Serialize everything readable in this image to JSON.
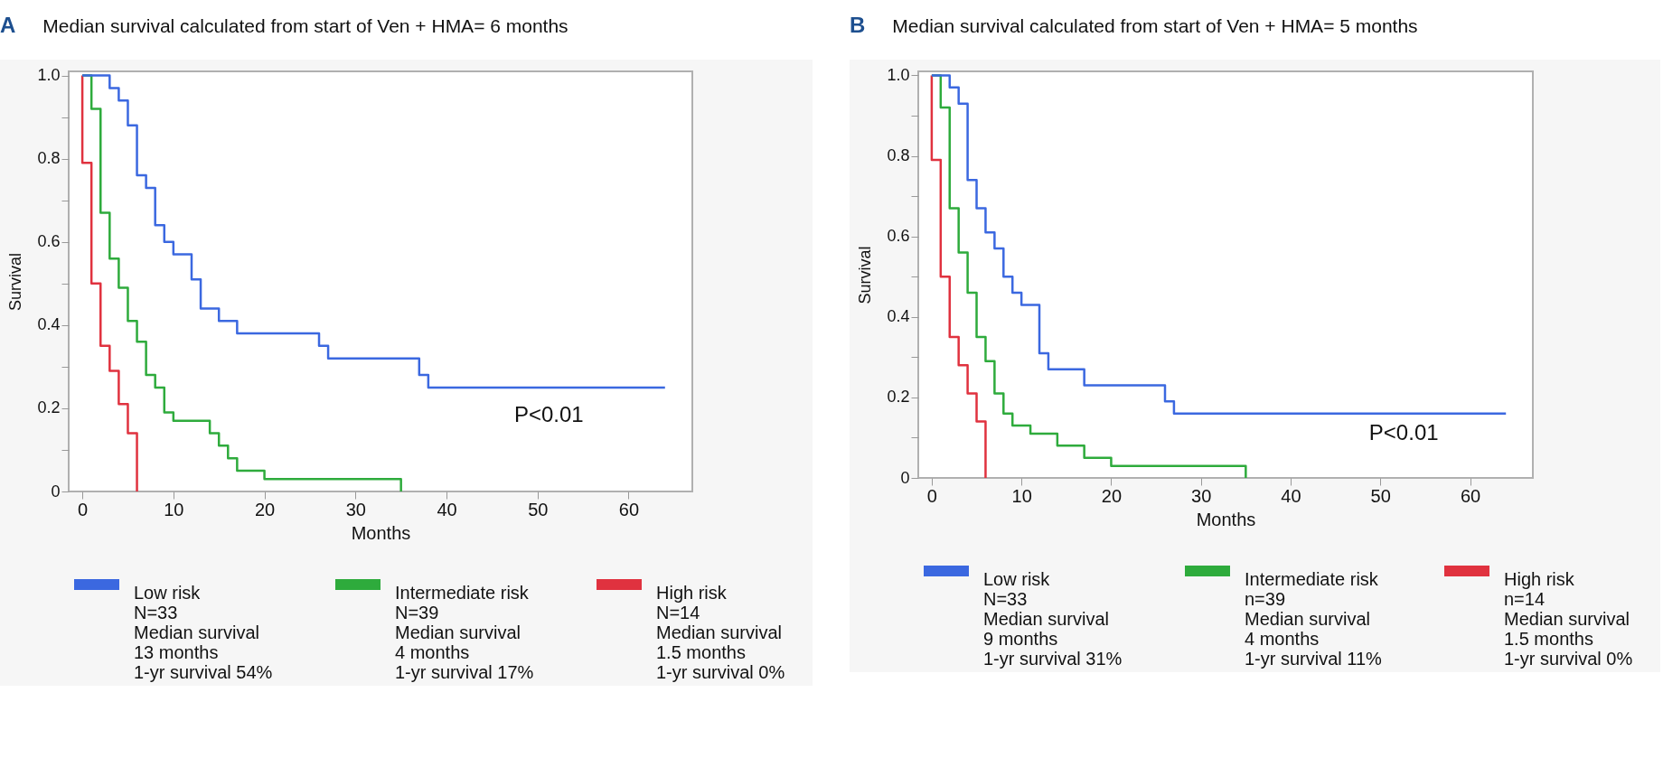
{
  "chart_data": [
    {
      "type": "step",
      "title": "Median survival calculated from start of Ven + HMA= 6 months",
      "xlabel": "Months",
      "ylabel": "Survival",
      "xlim": [
        -1.5,
        67
      ],
      "ylim": [
        0,
        1.01
      ],
      "xticks": [
        0,
        10,
        20,
        30,
        40,
        50,
        60
      ],
      "yticks": [
        0,
        {
          "value": 0.1,
          "label": null
        },
        0.2,
        {
          "value": 0.3,
          "label": null
        },
        0.4,
        {
          "value": 0.5,
          "label": null
        },
        0.6,
        {
          "value": 0.7,
          "label": null
        },
        0.8,
        {
          "value": 0.9,
          "label": null
        },
        {
          "value": 1,
          "label": "1.0"
        }
      ],
      "legend": "bottom",
      "marker": "none",
      "line_style": "solid",
      "series": [
        {
          "name": "Low risk",
          "color": "#3b68e0",
          "x": [
            0,
            3,
            4,
            5,
            6,
            7,
            8,
            9,
            10,
            12,
            13,
            15,
            17,
            26,
            27,
            37,
            38,
            64
          ],
          "values": [
            1,
            0.97,
            0.94,
            0.88,
            0.76,
            0.73,
            0.64,
            0.6,
            0.57,
            0.51,
            0.44,
            0.41,
            0.38,
            0.35,
            0.32,
            0.28,
            0.25,
            0.25
          ]
        },
        {
          "name": "Intermediate risk",
          "color": "#2eab3c",
          "x": [
            0,
            1,
            2,
            3,
            4,
            5,
            6,
            7,
            8,
            9,
            10,
            14,
            15,
            16,
            17,
            20,
            35
          ],
          "values": [
            1,
            0.92,
            0.67,
            0.56,
            0.49,
            0.41,
            0.36,
            0.28,
            0.25,
            0.19,
            0.17,
            0.14,
            0.11,
            0.08,
            0.05,
            0.03,
            0
          ]
        },
        {
          "name": "High risk",
          "color": "#e0323f",
          "x": [
            0,
            0,
            1,
            2,
            3,
            4,
            5,
            6
          ],
          "values": [
            1,
            0.79,
            0.5,
            0.35,
            0.29,
            0.21,
            0.14,
            0
          ]
        }
      ],
      "annotations": [
        "A",
        "P<0.01",
        "N=33\nMedian survival\n13 months\n1-yr survival 54%",
        "N=39\nMedian survival\n4 months\n1-yr survival 17%",
        "N=14\nMedian survival\n1.5 months\n1-yr survival 0%"
      ]
    },
    {
      "type": "step",
      "title": "Median survival calculated from start of Ven + HMA=  5 months",
      "xlabel": "Months",
      "ylabel": "Survival",
      "xlim": [
        -1.5,
        67
      ],
      "ylim": [
        0,
        1.01
      ],
      "xticks": [
        0,
        10,
        20,
        30,
        40,
        50,
        60
      ],
      "yticks": [
        0,
        {
          "value": 0.1,
          "label": null
        },
        0.2,
        {
          "value": 0.3,
          "label": null
        },
        0.4,
        {
          "value": 0.5,
          "label": null
        },
        0.6,
        {
          "value": 0.7,
          "label": null
        },
        0.8,
        {
          "value": 0.9,
          "label": null
        },
        {
          "value": 1,
          "label": "1.0"
        }
      ],
      "legend": "bottom",
      "marker": "none",
      "line_style": "solid",
      "series": [
        {
          "name": "Low risk",
          "color": "#3b68e0",
          "x": [
            0,
            2,
            3,
            4,
            5,
            6,
            7,
            8,
            9,
            10,
            12,
            13,
            17,
            26,
            27,
            64
          ],
          "values": [
            1,
            0.97,
            0.93,
            0.74,
            0.67,
            0.61,
            0.57,
            0.5,
            0.46,
            0.43,
            0.31,
            0.27,
            0.23,
            0.19,
            0.16,
            0.16
          ]
        },
        {
          "name": "Intermediate risk",
          "color": "#2eab3c",
          "x": [
            0,
            1,
            2,
            3,
            4,
            5,
            6,
            7,
            8,
            9,
            11,
            14,
            17,
            20,
            35
          ],
          "values": [
            1,
            0.92,
            0.67,
            0.56,
            0.46,
            0.35,
            0.29,
            0.21,
            0.16,
            0.13,
            0.11,
            0.08,
            0.05,
            0.03,
            0
          ]
        },
        {
          "name": "High risk",
          "color": "#e0323f",
          "x": [
            0,
            0,
            1,
            2,
            3,
            4,
            5,
            6
          ],
          "values": [
            1,
            0.79,
            0.5,
            0.35,
            0.28,
            0.21,
            0.14,
            0
          ]
        }
      ],
      "annotations": [
        "B",
        "P<0.01",
        "N=33\nMedian survival\n9 months\n1-yr survival 31%",
        "n=39\nMedian survival\n4 months\n1-yr survival 11%",
        "n=14\nMedian survival\n1.5 months\n1-yr survival 0%"
      ]
    }
  ]
}
